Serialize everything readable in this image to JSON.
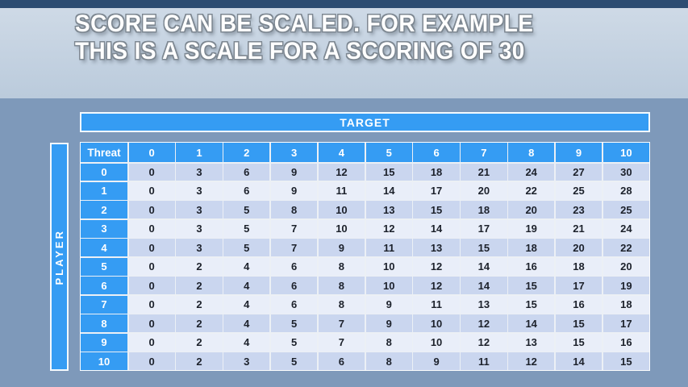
{
  "title": {
    "line1": "SCORE CAN BE SCALED. FOR EXAMPLE",
    "line2": "THIS IS A SCALE FOR A SCORING OF 30"
  },
  "matrix": {
    "target_label": "TARGET",
    "player_label": "PLAYER",
    "corner_label": "Threat",
    "column_headers": [
      "0",
      "1",
      "2",
      "3",
      "4",
      "5",
      "6",
      "7",
      "8",
      "9",
      "10"
    ],
    "row_headers": [
      "0",
      "1",
      "2",
      "3",
      "4",
      "5",
      "6",
      "7",
      "8",
      "9",
      "10"
    ],
    "rows": [
      [
        0,
        3,
        6,
        9,
        12,
        15,
        18,
        21,
        24,
        27,
        30
      ],
      [
        0,
        3,
        6,
        9,
        11,
        14,
        17,
        20,
        22,
        25,
        28
      ],
      [
        0,
        3,
        5,
        8,
        10,
        13,
        15,
        18,
        20,
        23,
        25
      ],
      [
        0,
        3,
        5,
        7,
        10,
        12,
        14,
        17,
        19,
        21,
        24
      ],
      [
        0,
        3,
        5,
        7,
        9,
        11,
        13,
        15,
        18,
        20,
        22
      ],
      [
        0,
        2,
        4,
        6,
        8,
        10,
        12,
        14,
        16,
        18,
        20
      ],
      [
        0,
        2,
        4,
        6,
        8,
        10,
        12,
        14,
        15,
        17,
        19
      ],
      [
        0,
        2,
        4,
        6,
        8,
        9,
        11,
        13,
        15,
        16,
        18
      ],
      [
        0,
        2,
        4,
        5,
        7,
        9,
        10,
        12,
        14,
        15,
        17
      ],
      [
        0,
        2,
        4,
        5,
        7,
        8,
        10,
        12,
        13,
        15,
        16
      ],
      [
        0,
        2,
        3,
        5,
        6,
        8,
        9,
        11,
        12,
        14,
        15
      ]
    ]
  },
  "colors": {
    "accent_blue": "#359CF3",
    "row_shade_dark": "#CAD6EF",
    "row_shade_light": "#E9EEF9",
    "top_bar_navy": "#2C4D72",
    "cell_text": "#1C212B",
    "title_text": "#FFFFFF",
    "title_outline": "#7D8791"
  }
}
